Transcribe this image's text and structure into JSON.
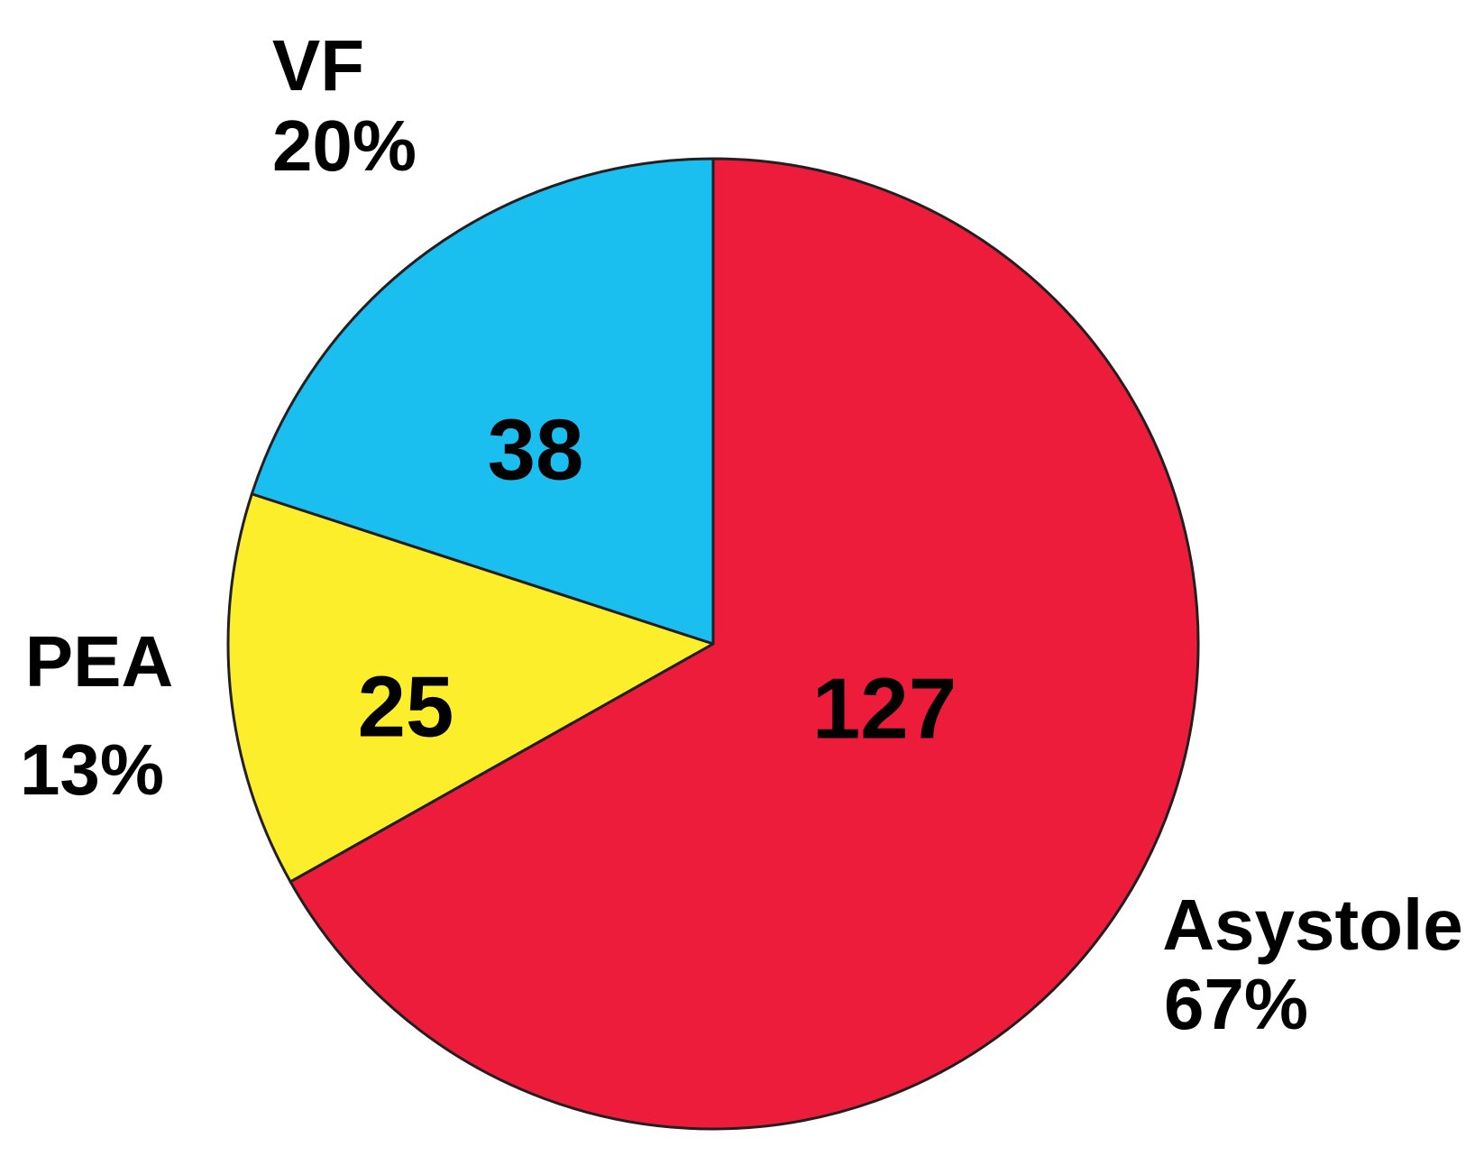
{
  "chart_data": {
    "type": "pie",
    "categories": [
      "Asystole",
      "PEA",
      "VF"
    ],
    "values": [
      127,
      25,
      38
    ],
    "percent_labels": [
      "67%",
      "13%",
      "20%"
    ],
    "colors": [
      "#ed1c3a",
      "#fcee2b",
      "#1bbfef"
    ],
    "start_angle": 0,
    "direction": "clockwise"
  }
}
